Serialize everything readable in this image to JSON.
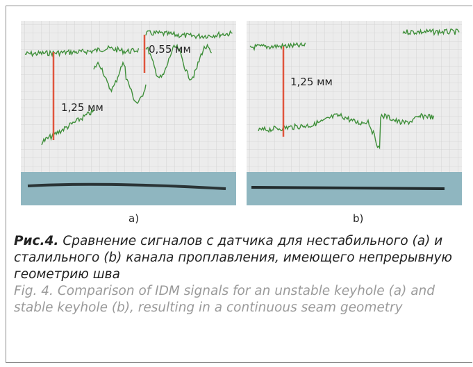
{
  "figure": {
    "panels": [
      {
        "label": "a)",
        "annotations": [
          "1,25 мм",
          "0,55 мм"
        ]
      },
      {
        "label": "b)",
        "annotations": [
          "1,25 мм"
        ]
      }
    ]
  },
  "caption": {
    "ru_label": "Рис.4.",
    "ru_text": "Сравнение сигналов с датчика для нестабильного (a) и сталильного (b) канала проплавления, имеющего непрерывную геометрию шва",
    "en_label": "Fig. 4.",
    "en_text": "Comparison of IDM signals for an unstable keyhole (a) and stable keyhole (b), resulting in a continuous seam geometry"
  }
}
